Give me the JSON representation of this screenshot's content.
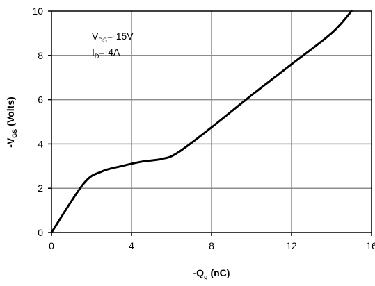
{
  "chart_data": {
    "type": "line",
    "x": [
      0,
      1.6,
      2.5,
      3.5,
      4.5,
      5.5,
      6.3,
      8,
      10,
      12,
      14,
      15
    ],
    "series": [
      {
        "values": [
          0,
          2.2,
          2.75,
          3.0,
          3.2,
          3.32,
          3.6,
          4.75,
          6.2,
          7.6,
          9.0,
          10.0
        ]
      }
    ],
    "xlim": [
      0,
      16
    ],
    "ylim": [
      0,
      10
    ],
    "xticks": [
      0,
      4,
      8,
      12,
      16
    ],
    "yticks": [
      0,
      2,
      4,
      6,
      8,
      10
    ],
    "xlabel": {
      "prefix": "-Q",
      "sub": "g",
      "suffix": " (nC)"
    },
    "ylabel": {
      "prefix": "-V",
      "sub": "GS",
      "suffix": " (Volts)"
    },
    "annotations": [
      {
        "prefix": "V",
        "sub": "DS",
        "suffix": "=-15V"
      },
      {
        "prefix": "I",
        "sub": "D",
        "suffix": "=-4A"
      }
    ],
    "grid": true,
    "line_color": "#000000",
    "grid_color": "#8c8c8c"
  }
}
